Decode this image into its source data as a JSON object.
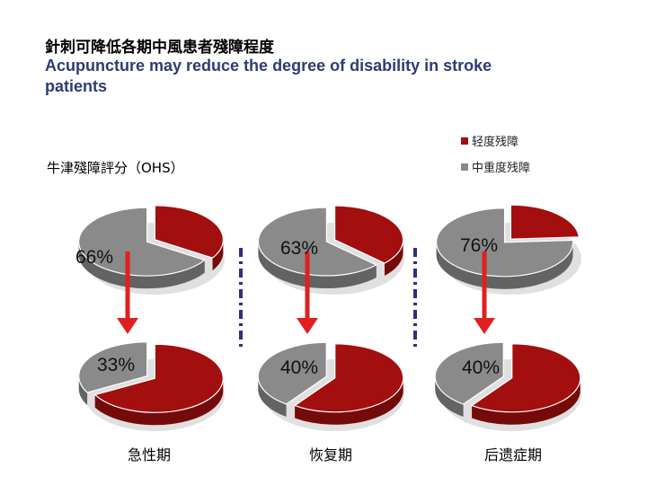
{
  "title_zh": "針刺可降低各期中風患者殘障程度",
  "title_en": "Acupuncture may reduce the degree of disability in stroke patients",
  "scale_label": "牛津殘障評分（OHS）",
  "colors": {
    "mild": "#a30e0e",
    "severe": "#8a8a8a",
    "arrow": "#e02020",
    "divider": "#2f2f80"
  },
  "chart_data": {
    "type": "pie",
    "legend": [
      "轻度残障",
      "中重度残障"
    ],
    "legend_position": "top-right",
    "phases": [
      {
        "label": "急性期",
        "before": {
          "severe_pct": 66,
          "label": "66%"
        },
        "after": {
          "severe_pct": 33,
          "label": "33%"
        }
      },
      {
        "label": "恢复期",
        "before": {
          "severe_pct": 63,
          "label": "63%"
        },
        "after": {
          "severe_pct": 40,
          "label": "40%"
        }
      },
      {
        "label": "后遗症期",
        "before": {
          "severe_pct": 76,
          "label": "76%"
        },
        "after": {
          "severe_pct": 40,
          "label": "40%"
        }
      }
    ]
  }
}
